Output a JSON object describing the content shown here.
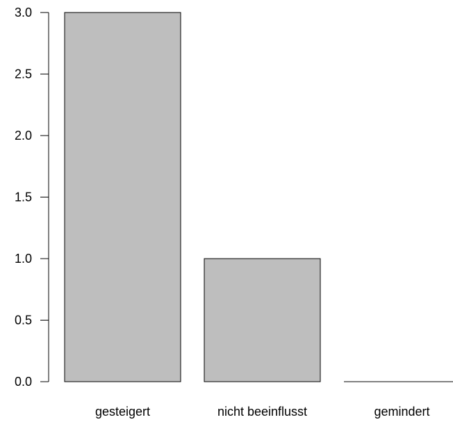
{
  "chart_data": {
    "type": "bar",
    "categories": [
      "gesteigert",
      "nicht beeinflusst",
      "gemindert"
    ],
    "values": [
      3,
      1,
      0
    ],
    "ylim": [
      0,
      3
    ],
    "yticks": [
      0,
      0.5,
      1,
      1.5,
      2,
      2.5,
      3
    ],
    "ytick_labels": [
      "0.0",
      "0.5",
      "1.0",
      "1.5",
      "2.0",
      "2.5",
      "3.0"
    ],
    "grid": false,
    "legend": "none",
    "bar_color": "#bebebe",
    "edge_color": "#000000"
  }
}
